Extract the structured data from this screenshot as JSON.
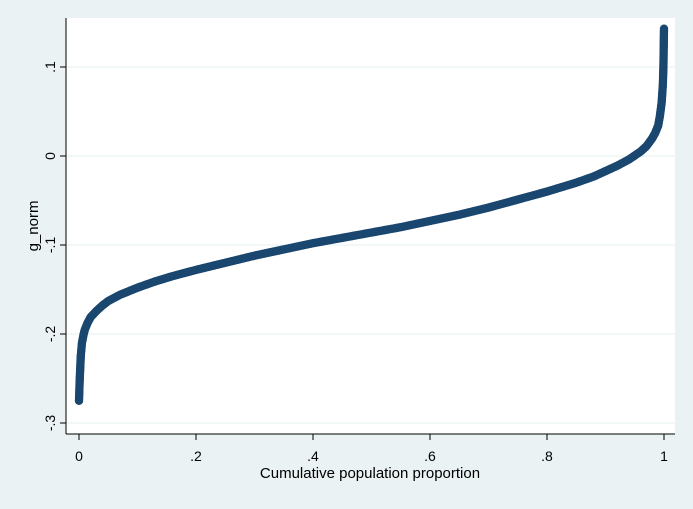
{
  "chart_data": {
    "type": "scatter",
    "title": "",
    "xlabel": "Cumulative population proportion",
    "ylabel": "g_norm",
    "xlim": [
      0,
      1
    ],
    "ylim": [
      -0.3,
      0.15
    ],
    "x_ticks": [
      0,
      0.2,
      0.4,
      0.6,
      0.8,
      1
    ],
    "x_tick_labels": [
      "0",
      ".2",
      ".4",
      ".6",
      ".8",
      "1"
    ],
    "y_ticks": [
      -0.3,
      -0.2,
      -0.1,
      0,
      0.1
    ],
    "y_tick_labels": [
      "-.3",
      "-.2",
      "-.1",
      "0",
      ".1"
    ],
    "grid": true,
    "legend": "none",
    "marker_color": "#1a476f",
    "plot_background": "#ffffff",
    "figure_background": "#eaf2f3",
    "series": [
      {
        "x": [
          0.0,
          0.001,
          0.002,
          0.003,
          0.005,
          0.008,
          0.01,
          0.015,
          0.02,
          0.03,
          0.04,
          0.05,
          0.07,
          0.1,
          0.13,
          0.16,
          0.2,
          0.25,
          0.3,
          0.35,
          0.4,
          0.45,
          0.5,
          0.55,
          0.6,
          0.65,
          0.7,
          0.75,
          0.8,
          0.85,
          0.88,
          0.9,
          0.92,
          0.94,
          0.96,
          0.97,
          0.98,
          0.985,
          0.99,
          0.993,
          0.996,
          0.998,
          0.999,
          1.0
        ],
        "y": [
          -0.275,
          -0.255,
          -0.24,
          -0.225,
          -0.21,
          -0.2,
          -0.195,
          -0.187,
          -0.181,
          -0.174,
          -0.168,
          -0.163,
          -0.156,
          -0.148,
          -0.141,
          -0.135,
          -0.128,
          -0.12,
          -0.112,
          -0.105,
          -0.098,
          -0.092,
          -0.086,
          -0.08,
          -0.073,
          -0.066,
          -0.058,
          -0.049,
          -0.04,
          -0.03,
          -0.023,
          -0.017,
          -0.011,
          -0.004,
          0.005,
          0.011,
          0.02,
          0.026,
          0.034,
          0.045,
          0.06,
          0.08,
          0.1,
          0.143
        ]
      }
    ]
  }
}
